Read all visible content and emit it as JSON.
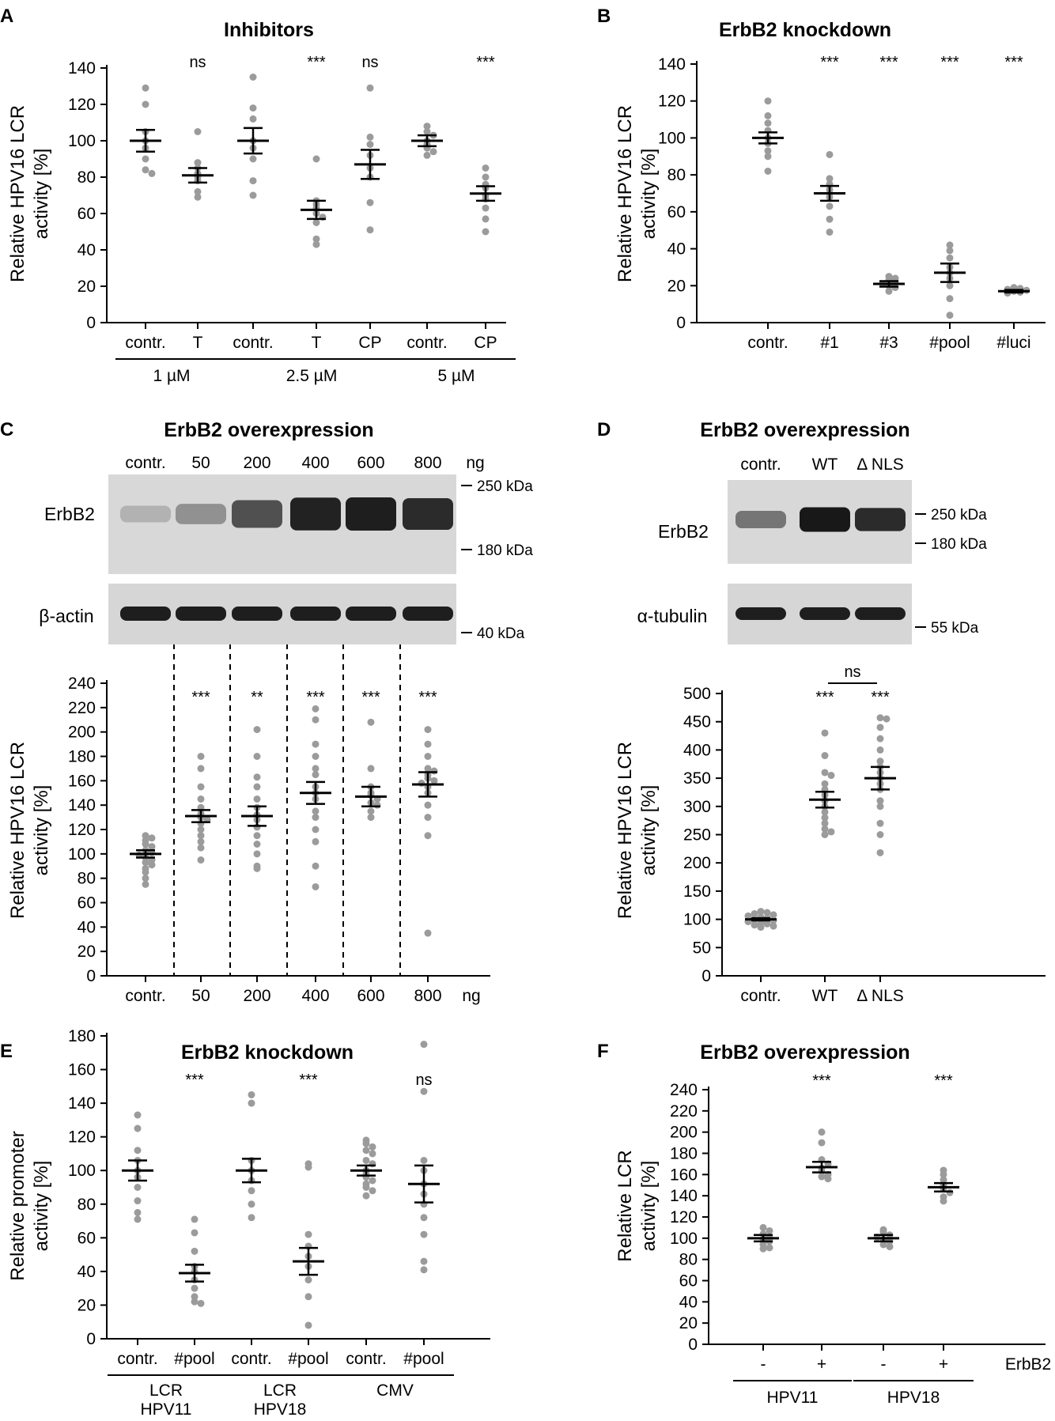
{
  "chart_data": [
    {
      "id": "A",
      "panel_label": "A",
      "type": "scatter",
      "title": "Inhibitors",
      "ylabel": "Relative HPV16 LCR activity [%]",
      "ylim": [
        0,
        140
      ],
      "yticks": [
        0,
        20,
        40,
        60,
        80,
        100,
        120,
        140
      ],
      "categories": [
        "contr.",
        "T",
        "contr.",
        "T",
        "CP",
        "contr.",
        "CP"
      ],
      "means": [
        100,
        81,
        100,
        62,
        87,
        100,
        71
      ],
      "sem": [
        6,
        4,
        7,
        5,
        8,
        3,
        4
      ],
      "points": [
        [
          129,
          120,
          105,
          100,
          96,
          90,
          84,
          82
        ],
        [
          105,
          88,
          85,
          82,
          80,
          78,
          72,
          69
        ],
        [
          135,
          118,
          112,
          100,
          96,
          90,
          78,
          70
        ],
        [
          90,
          67,
          65,
          63,
          60,
          58,
          55,
          46,
          43
        ],
        [
          129,
          102,
          98,
          92,
          85,
          80,
          66,
          51
        ],
        [
          108,
          105,
          103,
          100,
          98,
          96,
          94,
          92
        ],
        [
          85,
          80,
          76,
          74,
          70,
          68,
          63,
          57,
          50
        ]
      ],
      "significance": [
        "",
        "ns",
        "",
        "***",
        "ns",
        "",
        "***"
      ],
      "groups": [
        {
          "label": "1 µM",
          "members": [
            0,
            1
          ]
        },
        {
          "label": "2.5 µM",
          "members": [
            2,
            3,
            4
          ]
        },
        {
          "label": "5 µM",
          "members": [
            5,
            6
          ]
        }
      ]
    },
    {
      "id": "B",
      "panel_label": "B",
      "type": "scatter",
      "title": "ErbB2 knockdown",
      "ylabel": "Relative HPV16 LCR activity [%]",
      "ylim": [
        0,
        140
      ],
      "yticks": [
        0,
        20,
        40,
        60,
        80,
        100,
        120,
        140
      ],
      "categories": [
        "contr.",
        "#1",
        "#3",
        "#pool",
        "#luci"
      ],
      "means": [
        100,
        70,
        21,
        27,
        17
      ],
      "sem": [
        3,
        4,
        1.5,
        5,
        0.7
      ],
      "points": [
        [
          120,
          112,
          108,
          104,
          100,
          97,
          93,
          90,
          82
        ],
        [
          91,
          78,
          75,
          72,
          70,
          68,
          63,
          56,
          49
        ],
        [
          25,
          24,
          23,
          22,
          21,
          20,
          19,
          17
        ],
        [
          42,
          39,
          35,
          30,
          27,
          24,
          20,
          13,
          4
        ],
        [
          19,
          18.5,
          18,
          17.5,
          17,
          16.5,
          16
        ]
      ],
      "significance": [
        "",
        "***",
        "***",
        "***",
        "***"
      ]
    },
    {
      "id": "C",
      "panel_label": "C",
      "type": "scatter",
      "title": "ErbB2 overexpression",
      "ylabel": "Relative HPV16 LCR activity [%]",
      "ylim": [
        0,
        240
      ],
      "yticks": [
        0,
        20,
        40,
        60,
        80,
        100,
        120,
        140,
        160,
        180,
        200,
        220,
        240
      ],
      "categories": [
        "contr.",
        "50",
        "200",
        "400",
        "600",
        "800"
      ],
      "unit_label": "ng",
      "means": [
        100,
        131,
        131,
        150,
        147,
        157
      ],
      "sem": [
        3,
        5,
        8,
        9,
        8,
        10
      ],
      "points": [
        [
          115,
          113,
          111,
          108,
          106,
          103,
          101,
          99,
          97,
          95,
          93,
          91,
          88,
          85,
          80,
          75
        ],
        [
          180,
          170,
          155,
          145,
          138,
          133,
          130,
          128,
          125,
          120,
          115,
          110,
          105,
          95
        ],
        [
          202,
          180,
          163,
          155,
          145,
          138,
          132,
          128,
          122,
          115,
          108,
          100,
          90,
          88
        ],
        [
          219,
          210,
          190,
          180,
          170,
          165,
          155,
          150,
          145,
          135,
          130,
          120,
          110,
          90,
          73
        ],
        [
          208,
          170,
          155,
          150,
          148,
          145,
          142,
          140,
          135,
          130
        ],
        [
          202,
          190,
          180,
          170,
          168,
          165,
          162,
          160,
          158,
          155,
          150,
          140,
          130,
          115,
          35
        ]
      ],
      "significance": [
        "",
        "***",
        "**",
        "***",
        "***",
        "***"
      ],
      "blot": {
        "column_labels": [
          "contr.",
          "50",
          "200",
          "400",
          "600",
          "800",
          "ng"
        ],
        "row_labels": [
          "ErbB2",
          "β-actin"
        ],
        "markers": [
          "250 kDa",
          "180 kDa",
          "40 kDa"
        ],
        "band_intensity": [
          0.12,
          0.3,
          0.65,
          0.9,
          0.92,
          0.85
        ]
      }
    },
    {
      "id": "D",
      "panel_label": "D",
      "type": "scatter",
      "title": "ErbB2 overexpression",
      "ylabel": "Relative HPV16 LCR activity [%]",
      "ylim": [
        0,
        500
      ],
      "yticks": [
        0,
        50,
        100,
        150,
        200,
        250,
        300,
        350,
        400,
        450,
        500
      ],
      "categories": [
        "contr.",
        "WT",
        "Δ NLS"
      ],
      "means": [
        100,
        312,
        350
      ],
      "sem": [
        2,
        14,
        20
      ],
      "points": [
        [
          114,
          112,
          110,
          108,
          106,
          104,
          102,
          100,
          98,
          96,
          94,
          92,
          90,
          88,
          86
        ],
        [
          430,
          390,
          360,
          355,
          340,
          330,
          320,
          310,
          300,
          290,
          280,
          270,
          260,
          255,
          250
        ],
        [
          457,
          455,
          440,
          420,
          400,
          380,
          370,
          360,
          350,
          340,
          330,
          310,
          300,
          270,
          250,
          218
        ]
      ],
      "significance": [
        "",
        "***",
        "***"
      ],
      "bracket": {
        "label": "ns",
        "from": 1,
        "to": 2
      },
      "blot": {
        "column_labels": [
          "contr.",
          "WT",
          "Δ NLS"
        ],
        "row_labels": [
          "ErbB2",
          "α-tubulin"
        ],
        "markers": [
          "250 kDa",
          "180 kDa",
          "55 kDa"
        ],
        "band_intensity": [
          0.45,
          0.95,
          0.85
        ]
      }
    },
    {
      "id": "E",
      "panel_label": "E",
      "type": "scatter",
      "title": "ErbB2 knockdown",
      "ylabel": "Relative promoter activity [%]",
      "ylim": [
        0,
        190
      ],
      "yticks": [
        0,
        20,
        40,
        60,
        80,
        100,
        120,
        140,
        160,
        180
      ],
      "categories": [
        "contr.",
        "#pool",
        "contr.",
        "#pool",
        "contr.",
        "#pool"
      ],
      "means": [
        100,
        39,
        100,
        46,
        100,
        92
      ],
      "sem": [
        6,
        5,
        7,
        8,
        3,
        11
      ],
      "points": [
        [
          133,
          125,
          112,
          106,
          100,
          96,
          90,
          82,
          75,
          71
        ],
        [
          71,
          63,
          52,
          43,
          40,
          35,
          30,
          25,
          22,
          21
        ],
        [
          145,
          140,
          106,
          100,
          94,
          88,
          80,
          72
        ],
        [
          104,
          102,
          62,
          55,
          49,
          43,
          35,
          25,
          8
        ],
        [
          118,
          116,
          114,
          112,
          110,
          106,
          104,
          100,
          98,
          96,
          94,
          92,
          90,
          88,
          85
        ],
        [
          175,
          147,
          106,
          100,
          92,
          86,
          80,
          72,
          62,
          46,
          41
        ]
      ],
      "significance": [
        "***",
        "***",
        "ns"
      ],
      "significance_columns": [
        1,
        3,
        5
      ],
      "groups": [
        {
          "label": "LCR HPV11",
          "members": [
            0,
            1
          ]
        },
        {
          "label": "LCR HPV18",
          "members": [
            2,
            3
          ]
        },
        {
          "label": "CMV",
          "members": [
            4,
            5
          ]
        }
      ]
    },
    {
      "id": "F",
      "panel_label": "F",
      "type": "scatter",
      "title": "ErbB2 overexpression",
      "ylabel": "Relative LCR activity [%]",
      "ylim": [
        0,
        240
      ],
      "yticks": [
        0,
        20,
        40,
        60,
        80,
        100,
        120,
        140,
        160,
        180,
        200,
        220,
        240
      ],
      "categories": [
        "-",
        "+",
        "-",
        "+"
      ],
      "row_label": "ErbB2",
      "means": [
        100,
        167,
        100,
        148
      ],
      "sem": [
        3,
        5,
        3,
        4
      ],
      "points": [
        [
          110,
          107,
          104,
          101,
          99,
          97,
          94,
          91,
          90
        ],
        [
          200,
          190,
          174,
          170,
          166,
          163,
          160,
          158,
          156
        ],
        [
          108,
          106,
          103,
          101,
          99,
          97,
          94,
          92
        ],
        [
          164,
          160,
          155,
          150,
          147,
          143,
          139,
          135
        ]
      ],
      "significance": [
        "",
        "***",
        "",
        "***"
      ],
      "groups": [
        {
          "label": "HPV11",
          "members": [
            0,
            1
          ]
        },
        {
          "label": "HPV18",
          "members": [
            2,
            3
          ]
        }
      ]
    }
  ]
}
